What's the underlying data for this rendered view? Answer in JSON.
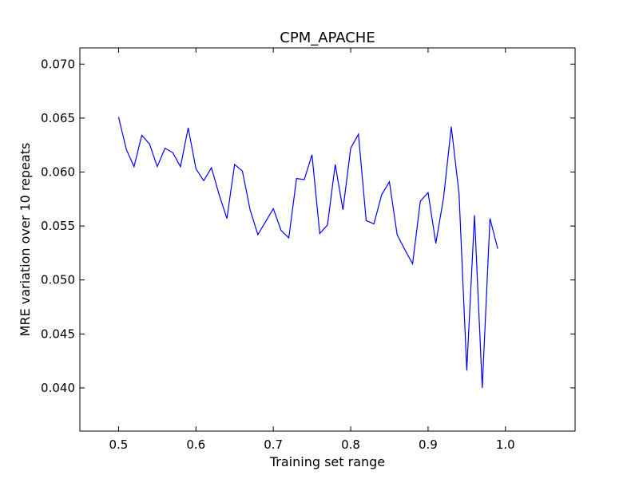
{
  "chart_data": {
    "type": "line",
    "title": "CPM_APACHE",
    "xlabel": "Training set range",
    "ylabel": "MRE variation over 10 repeats",
    "xlim": [
      0.45,
      1.09
    ],
    "ylim": [
      0.036,
      0.0715
    ],
    "xticks": [
      0.5,
      0.6,
      0.7,
      0.8,
      0.9,
      1.0
    ],
    "xtick_labels": [
      "0.5",
      "0.6",
      "0.7",
      "0.8",
      "0.9",
      "1.0"
    ],
    "yticks": [
      0.04,
      0.045,
      0.05,
      0.055,
      0.06,
      0.065,
      0.07
    ],
    "ytick_labels": [
      "0.040",
      "0.045",
      "0.050",
      "0.055",
      "0.060",
      "0.065",
      "0.070"
    ],
    "grid": false,
    "series": [
      {
        "color": "#0000ff",
        "x": [
          0.5,
          0.51,
          0.52,
          0.53,
          0.54,
          0.55,
          0.56,
          0.57,
          0.58,
          0.59,
          0.6,
          0.61,
          0.62,
          0.63,
          0.64,
          0.65,
          0.66,
          0.67,
          0.68,
          0.69,
          0.7,
          0.71,
          0.72,
          0.73,
          0.74,
          0.75,
          0.76,
          0.77,
          0.78,
          0.79,
          0.8,
          0.81,
          0.82,
          0.83,
          0.84,
          0.85,
          0.86,
          0.87,
          0.88,
          0.89,
          0.9,
          0.91,
          0.92,
          0.93,
          0.94,
          0.95,
          0.96,
          0.97,
          0.98,
          0.99
        ],
        "y": [
          0.0651,
          0.0621,
          0.0605,
          0.0634,
          0.0626,
          0.0605,
          0.0622,
          0.0618,
          0.0605,
          0.0641,
          0.0603,
          0.0592,
          0.0604,
          0.0579,
          0.0557,
          0.0607,
          0.0601,
          0.0565,
          0.0542,
          0.0554,
          0.0566,
          0.0546,
          0.0539,
          0.0594,
          0.0593,
          0.0616,
          0.0543,
          0.0551,
          0.0607,
          0.0565,
          0.0622,
          0.0635,
          0.0555,
          0.0552,
          0.0579,
          0.0591,
          0.0542,
          0.0528,
          0.0515,
          0.0573,
          0.0581,
          0.0534,
          0.0576,
          0.0642,
          0.058,
          0.0416,
          0.056,
          0.04,
          0.0557,
          0.0529
        ]
      }
    ]
  }
}
